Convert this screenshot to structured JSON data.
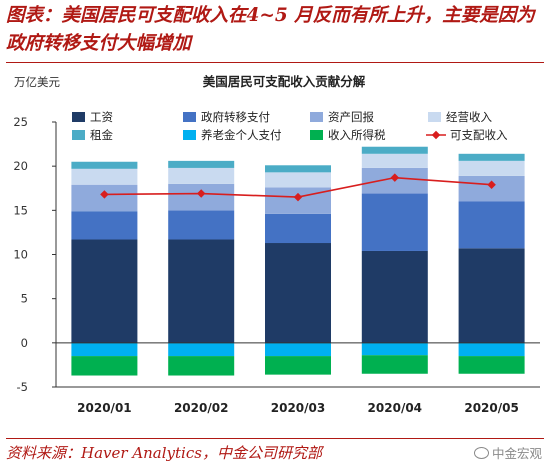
{
  "figure": {
    "headline": "图表：美国居民可支配收入在4~5 月反而有所上升，主要是因为政府转移支付大幅增加",
    "source": "资料来源：Haver Analytics，中金公司研究部",
    "watermark": "中金宏观",
    "watermark_icon": "wechat-icon"
  },
  "chart_data": {
    "type": "bar",
    "stacked": true,
    "title": "美国居民可支配收入贡献分解",
    "ylabel": "万亿美元",
    "ylim": [
      -5,
      25
    ],
    "yticks": [
      -5,
      0,
      5,
      10,
      15,
      20,
      25
    ],
    "grid": false,
    "legend_position": "top",
    "categories": [
      "2020/01",
      "2020/02",
      "2020/03",
      "2020/04",
      "2020/05"
    ],
    "series": [
      {
        "name": "工资",
        "type": "bar",
        "color": "#1f3b66",
        "values": [
          11.7,
          11.7,
          11.3,
          10.4,
          10.7
        ]
      },
      {
        "name": "政府转移支付",
        "type": "bar",
        "color": "#4472c4",
        "values": [
          3.2,
          3.3,
          3.3,
          6.5,
          5.3
        ]
      },
      {
        "name": "资产回报",
        "type": "bar",
        "color": "#8faadc",
        "values": [
          3.0,
          3.0,
          3.0,
          2.9,
          2.9
        ]
      },
      {
        "name": "经营收入",
        "type": "bar",
        "color": "#c9daf0",
        "values": [
          1.8,
          1.8,
          1.7,
          1.6,
          1.7
        ]
      },
      {
        "name": "租金",
        "type": "bar",
        "color": "#4bacc6",
        "values": [
          0.8,
          0.8,
          0.8,
          0.8,
          0.8
        ]
      },
      {
        "name": "养老金个人支付",
        "type": "bar",
        "color": "#00b0f0",
        "values": [
          -1.5,
          -1.5,
          -1.5,
          -1.4,
          -1.5
        ]
      },
      {
        "name": "收入所得税",
        "type": "bar",
        "color": "#00b050",
        "values": [
          -2.2,
          -2.2,
          -2.1,
          -2.1,
          -2.0
        ]
      },
      {
        "name": "可支配收入",
        "type": "line",
        "color": "#d81e1e",
        "values": [
          16.8,
          16.9,
          16.5,
          18.7,
          17.9
        ]
      }
    ]
  }
}
